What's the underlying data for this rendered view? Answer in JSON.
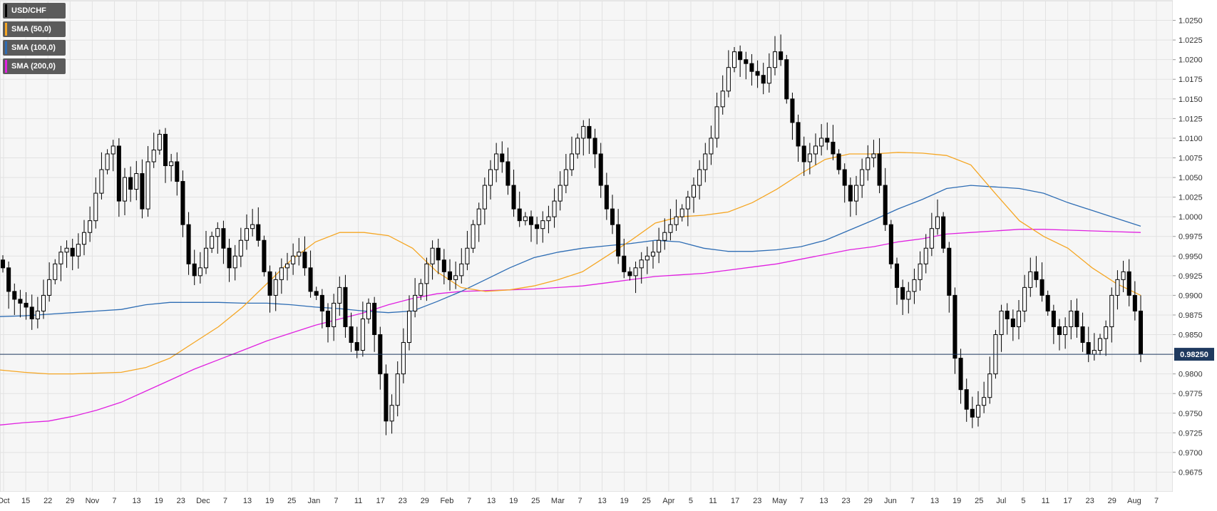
{
  "chart_data": {
    "type": "candlestick",
    "symbol": "USD/CHF",
    "legend": [
      {
        "label": "USD/CHF",
        "color": "#000000"
      },
      {
        "label": "SMA (50,0)",
        "color": "#f5a623"
      },
      {
        "label": "SMA (100,0)",
        "color": "#2e6db4"
      },
      {
        "label": "SMA (200,0)",
        "color": "#e020e0"
      }
    ],
    "y_axis": {
      "range": [
        0.965,
        1.0275
      ],
      "ticks": [
        "1.0250",
        "1.0225",
        "1.0200",
        "1.0175",
        "1.0150",
        "1.0125",
        "1.0100",
        "1.0075",
        "1.0050",
        "1.0025",
        "1.0000",
        "0.9975",
        "0.9950",
        "0.9925",
        "0.9900",
        "0.9875",
        "0.9850",
        "0.9825",
        "0.9800",
        "0.9775",
        "0.9750",
        "0.9725",
        "0.9700",
        "0.9675"
      ]
    },
    "x_ticks": [
      "Oct",
      "15",
      "22",
      "29",
      "Nov",
      "7",
      "13",
      "19",
      "23",
      "Dec",
      "7",
      "13",
      "19",
      "25",
      "Jan",
      "7",
      "11",
      "17",
      "23",
      "29",
      "Feb",
      "7",
      "13",
      "19",
      "25",
      "Mar",
      "7",
      "13",
      "19",
      "25",
      "Apr",
      "5",
      "11",
      "17",
      "23",
      "May",
      "7",
      "13",
      "23",
      "29",
      "Jun",
      "7",
      "13",
      "19",
      "25",
      "Jul",
      "5",
      "11",
      "17",
      "23",
      "29",
      "Aug",
      "7"
    ],
    "current_price": {
      "value": 0.9825,
      "label": "0.98250"
    },
    "grid": true,
    "close_series": [
      0.9935,
      0.9905,
      0.9895,
      0.989,
      0.9885,
      0.987,
      0.988,
      0.99,
      0.992,
      0.994,
      0.9955,
      0.996,
      0.995,
      0.9965,
      0.998,
      0.9995,
      1.003,
      1.006,
      1.008,
      1.009,
      1.002,
      1.005,
      1.0035,
      1.0055,
      1.001,
      1.007,
      1.0085,
      1.0105,
      1.0065,
      1.007,
      1.0045,
      0.999,
      0.994,
      0.9925,
      0.9935,
      0.996,
      0.9975,
      0.9985,
      0.996,
      0.9935,
      0.995,
      0.997,
      0.9985,
      0.999,
      0.997,
      0.993,
      0.99,
      0.992,
      0.9935,
      0.994,
      0.995,
      0.9955,
      0.9935,
      0.9905,
      0.99,
      0.988,
      0.986,
      0.989,
      0.991,
      0.986,
      0.984,
      0.983,
      0.987,
      0.989,
      0.985,
      0.98,
      0.974,
      0.976,
      0.98,
      0.984,
      0.988,
      0.99,
      0.9915,
      0.994,
      0.996,
      0.9945,
      0.993,
      0.992,
      0.9925,
      0.994,
      0.996,
      0.999,
      1.001,
      1.004,
      1.006,
      1.008,
      1.007,
      1.004,
      1.001,
      0.9995,
      1.0,
      0.999,
      0.9985,
      0.9995,
      1.0,
      1.002,
      1.004,
      1.006,
      1.008,
      1.01,
      1.0115,
      1.01,
      1.008,
      1.004,
      1.001,
      0.999,
      0.995,
      0.993,
      0.9925,
      0.9935,
      0.9945,
      0.995,
      0.9955,
      0.997,
      0.998,
      0.999,
      1.0,
      1.001,
      1.0025,
      1.004,
      1.006,
      1.008,
      1.01,
      1.014,
      1.016,
      1.019,
      1.021,
      1.02,
      1.0195,
      1.0185,
      1.018,
      1.017,
      1.019,
      1.021,
      1.02,
      1.015,
      1.012,
      1.009,
      1.007,
      1.008,
      1.009,
      1.01,
      1.0095,
      1.008,
      1.006,
      1.004,
      1.002,
      1.004,
      1.006,
      1.0075,
      1.008,
      1.004,
      0.999,
      0.994,
      0.991,
      0.9895,
      0.9905,
      0.992,
      0.994,
      0.996,
      0.9985,
      1.0,
      0.996,
      0.99,
      0.982,
      0.978,
      0.9755,
      0.9745,
      0.976,
      0.977,
      0.98,
      0.985,
      0.988,
      0.987,
      0.986,
      0.988,
      0.991,
      0.993,
      0.992,
      0.99,
      0.988,
      0.986,
      0.985,
      0.986,
      0.988,
      0.986,
      0.984,
      0.9825,
      0.983,
      0.9845,
      0.986,
      0.99,
      0.992,
      0.993,
      0.99,
      0.988,
      0.9825
    ],
    "sma50": [
      0.9805,
      0.9802,
      0.98,
      0.98,
      0.9801,
      0.9802,
      0.9808,
      0.982,
      0.984,
      0.986,
      0.9885,
      0.9915,
      0.9945,
      0.9968,
      0.998,
      0.998,
      0.9976,
      0.996,
      0.993,
      0.991,
      0.9905,
      0.9907,
      0.9912,
      0.992,
      0.993,
      0.995,
      0.997,
      0.9992,
      1.0,
      1.0002,
      1.0006,
      1.0018,
      1.0035,
      1.0055,
      1.0073,
      1.008,
      1.008,
      1.0082,
      1.0081,
      1.0078,
      1.0066,
      1.003,
      0.9995,
      0.9975,
      0.996,
      0.9935,
      0.9915,
      0.99
    ],
    "sma100": [
      0.9873,
      0.9874,
      0.9876,
      0.9878,
      0.988,
      0.9882,
      0.9888,
      0.9891,
      0.9891,
      0.9891,
      0.989,
      0.989,
      0.9888,
      0.9885,
      0.9883,
      0.988,
      0.9878,
      0.988,
      0.9892,
      0.9905,
      0.992,
      0.9935,
      0.9948,
      0.9955,
      0.996,
      0.9963,
      0.9966,
      0.997,
      0.9968,
      0.996,
      0.9956,
      0.9956,
      0.9958,
      0.9962,
      0.997,
      0.9983,
      0.9996,
      1.001,
      1.0022,
      1.0036,
      1.004,
      1.0038,
      1.0036,
      1.003,
      1.0018,
      1.0008,
      0.9998,
      0.9988
    ],
    "sma200": [
      0.9735,
      0.9738,
      0.974,
      0.9746,
      0.9754,
      0.9764,
      0.9778,
      0.9792,
      0.9806,
      0.9818,
      0.983,
      0.9842,
      0.9852,
      0.9862,
      0.987,
      0.9878,
      0.9888,
      0.9896,
      0.9902,
      0.9905,
      0.9906,
      0.9907,
      0.9908,
      0.991,
      0.9912,
      0.9916,
      0.992,
      0.9924,
      0.9926,
      0.9928,
      0.9932,
      0.9936,
      0.994,
      0.9946,
      0.9952,
      0.9958,
      0.9962,
      0.9968,
      0.9972,
      0.9978,
      0.998,
      0.9982,
      0.9984,
      0.9984,
      0.9983,
      0.9982,
      0.9981,
      0.998
    ]
  }
}
